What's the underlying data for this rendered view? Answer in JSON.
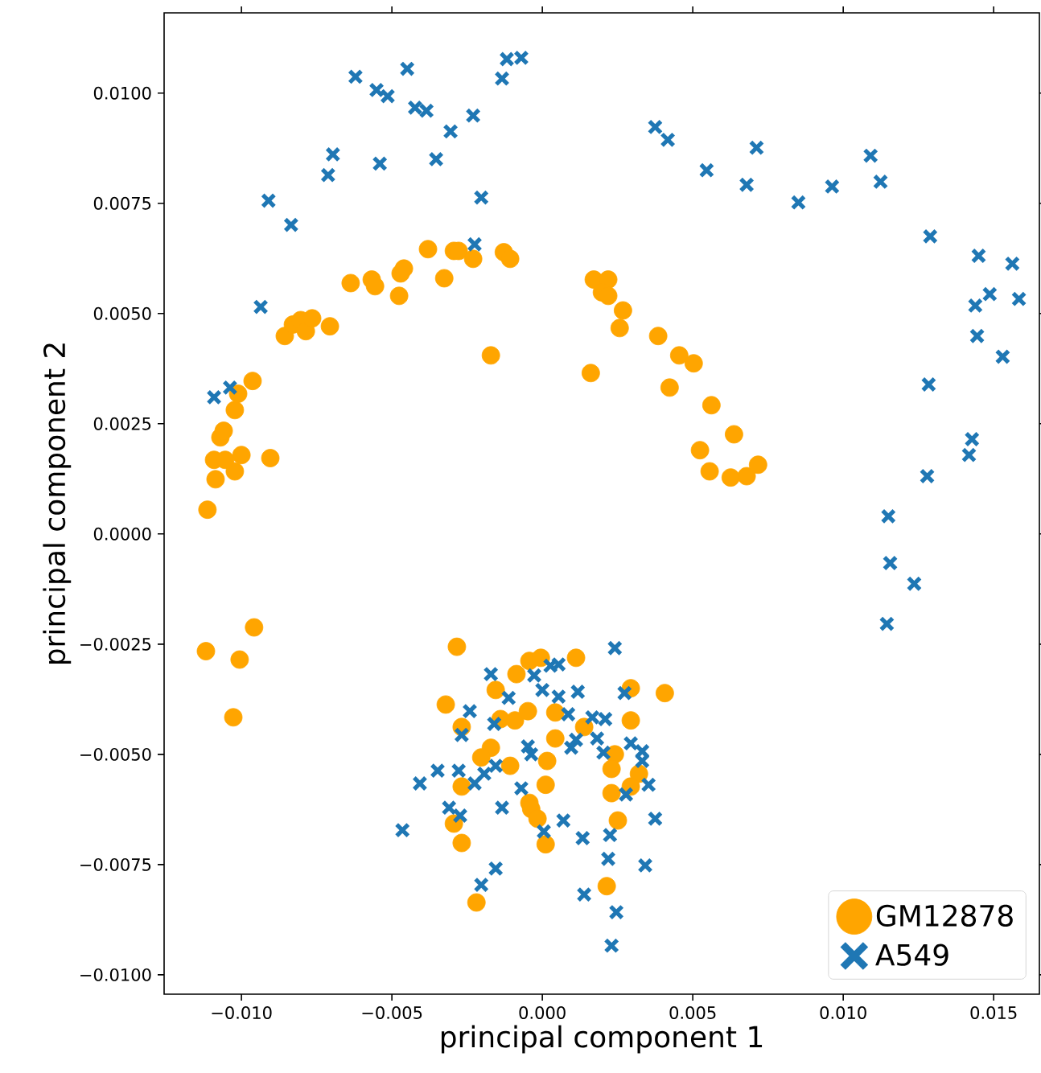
{
  "chart_data": {
    "type": "scatter",
    "xlabel": "principal component 1",
    "ylabel": "principal component 2",
    "xlim": [
      -0.01257,
      0.01652
    ],
    "ylim": [
      -0.01044,
      0.01182
    ],
    "xticks": [
      {
        "value": -0.01,
        "label": "−0.010"
      },
      {
        "value": -0.005,
        "label": "−0.005"
      },
      {
        "value": 0,
        "label": "0.000"
      },
      {
        "value": 0.005,
        "label": "0.005"
      },
      {
        "value": 0.01,
        "label": "0.010"
      },
      {
        "value": 0.015,
        "label": "0.015"
      }
    ],
    "yticks": [
      {
        "value": -0.01,
        "label": "−0.0100"
      },
      {
        "value": -0.0075,
        "label": "−0.0075"
      },
      {
        "value": -0.005,
        "label": "−0.0050"
      },
      {
        "value": -0.0025,
        "label": "−0.0025"
      },
      {
        "value": 0,
        "label": "0.0000"
      },
      {
        "value": 0.0025,
        "label": "0.0025"
      },
      {
        "value": 0.005,
        "label": "0.0050"
      },
      {
        "value": 0.0075,
        "label": "0.0075"
      },
      {
        "value": 0.01,
        "label": "0.0100"
      }
    ],
    "legend": "bottom right",
    "series": [
      {
        "name": "GM12878",
        "color": "#ffa500",
        "marker": "circle",
        "x": [
          -0.01113,
          -0.01086,
          -0.01022,
          -0.01,
          -0.01091,
          -0.01054,
          -0.0107,
          -0.01059,
          -0.00904,
          -0.01022,
          -0.01011,
          -0.00963,
          -0.00856,
          -0.00829,
          -0.00803,
          -0.00786,
          -0.00765,
          -0.00706,
          -0.00637,
          -0.00567,
          -0.00556,
          -0.00476,
          -0.00471,
          -0.0046,
          -0.0038,
          -0.00326,
          -0.00294,
          -0.00278,
          -0.0023,
          -0.00171,
          -0.00128,
          -0.00107,
          0.00171,
          0.00219,
          0.00198,
          0.00219,
          0.00268,
          0.00257,
          0.00161,
          0.00385,
          0.00455,
          0.00503,
          0.00423,
          0.00562,
          0.00637,
          0.00524,
          0.00556,
          0.00626,
          0.00679,
          0.00717,
          -0.00958,
          -0.01118,
          -0.01006,
          -0.01027,
          -0.00284,
          0.00112,
          -0.00043,
          -5e-05,
          -0.00086,
          -0.00155,
          -0.00321,
          -0.00139,
          -0.00091,
          -0.00048,
          0.00043,
          0.00294,
          0.00407,
          -0.00268,
          0.00294,
          0.00139,
          0.00043,
          -0.00171,
          -0.00203,
          -0.00107,
          0.00016,
          0.00241,
          0.0023,
          0.00321,
          -0.00268,
          0.00011,
          0.00294,
          0.0023,
          -0.00043,
          -0.00037,
          -0.00016,
          -0.00294,
          0.00251,
          -0.00268,
          0.00011,
          0.00214,
          -0.00219
        ],
        "values": [
          0.00055,
          0.00124,
          0.00142,
          0.00179,
          0.00168,
          0.00168,
          0.00219,
          0.00234,
          0.00172,
          0.00281,
          0.00318,
          0.00347,
          0.00449,
          0.00475,
          0.00485,
          0.0046,
          0.00489,
          0.00471,
          0.00569,
          0.00577,
          0.00562,
          0.0054,
          0.00591,
          0.00602,
          0.00646,
          0.0058,
          0.00642,
          0.00642,
          0.00624,
          0.00405,
          0.00639,
          0.00624,
          0.00577,
          0.00577,
          0.00548,
          0.0054,
          0.00507,
          0.00467,
          0.00365,
          0.00449,
          0.00405,
          0.00387,
          0.00332,
          0.00292,
          0.00226,
          0.0019,
          0.00142,
          0.00128,
          0.00131,
          0.00157,
          -0.00212,
          -0.00266,
          -0.00285,
          -0.00416,
          -0.00256,
          -0.00281,
          -0.00288,
          -0.00281,
          -0.00318,
          -0.00354,
          -0.00387,
          -0.0042,
          -0.00423,
          -0.00402,
          -0.00405,
          -0.0035,
          -0.00361,
          -0.00438,
          -0.00423,
          -0.00438,
          -0.00464,
          -0.00485,
          -0.00507,
          -0.00526,
          -0.00515,
          -0.005,
          -0.00533,
          -0.00544,
          -0.00573,
          -0.00569,
          -0.00573,
          -0.00588,
          -0.0061,
          -0.00624,
          -0.00646,
          -0.00657,
          -0.0065,
          -0.00701,
          -0.00704,
          -0.00799,
          -0.00836
        ]
      },
      {
        "name": "A549",
        "color": "#1f77b4",
        "marker": "cross",
        "x": [
          -0.00621,
          -0.00551,
          -0.00514,
          -0.00449,
          -0.00423,
          -0.00385,
          -0.00305,
          -0.0023,
          -0.00134,
          -0.00118,
          -0.0007,
          -0.00696,
          -0.00712,
          -0.0054,
          -0.00353,
          -0.0091,
          -0.00835,
          -0.00203,
          -0.00225,
          -0.00936,
          -0.01091,
          -0.01038,
          0.00375,
          0.00417,
          0.00712,
          0.00546,
          0.00679,
          0.00851,
          0.00963,
          0.01091,
          0.01124,
          0.01289,
          0.0145,
          0.01562,
          0.01487,
          0.01439,
          0.01584,
          0.01445,
          0.0153,
          0.01284,
          0.01428,
          0.01418,
          0.01279,
          0.0115,
          0.01156,
          0.01236,
          0.01145,
          0.00241,
          -0.00171,
          0.00027,
          0.00054,
          -0.00027,
          -0.00112,
          0,
          0.00054,
          0.00118,
          0.00273,
          -0.00241,
          -0.0016,
          0.00086,
          0.00166,
          0.00209,
          -0.00268,
          -0.00048,
          -0.00037,
          0.00096,
          0.00112,
          0.00182,
          0.00203,
          0.00294,
          0.00332,
          0.00332,
          -0.00348,
          -0.00407,
          -0.00278,
          -0.00225,
          -0.00193,
          -0.00155,
          -0.0007,
          0.00353,
          0.00278,
          -0.0031,
          -0.00273,
          -0.00134,
          0.0007,
          0.00375,
          -0.00465,
          5e-05,
          0.00134,
          0.00225,
          0.00219,
          0.00342,
          -0.00155,
          -0.00203,
          0.00139,
          0.00246,
          0.0023
        ],
        "values": [
          0.01037,
          0.01007,
          0.00993,
          0.01055,
          0.00967,
          0.0096,
          0.00913,
          0.00949,
          0.01033,
          0.01077,
          0.0108,
          0.00861,
          0.00814,
          0.0084,
          0.0085,
          0.00756,
          0.00701,
          0.00763,
          0.00657,
          0.00515,
          0.0031,
          0.00332,
          0.00923,
          0.00894,
          0.00876,
          0.00825,
          0.00792,
          0.00752,
          0.00788,
          0.00858,
          0.00799,
          0.00675,
          0.00631,
          0.00613,
          0.00544,
          0.00518,
          0.00533,
          0.00449,
          0.00402,
          0.00339,
          0.00215,
          0.00179,
          0.00131,
          0.0004,
          -0.00066,
          -0.00113,
          -0.00204,
          -0.00259,
          -0.00318,
          -0.00299,
          -0.00296,
          -0.00321,
          -0.00372,
          -0.00354,
          -0.00369,
          -0.00358,
          -0.00361,
          -0.00402,
          -0.00431,
          -0.00409,
          -0.00416,
          -0.0042,
          -0.00456,
          -0.00482,
          -0.005,
          -0.00485,
          -0.00467,
          -0.00464,
          -0.00496,
          -0.00475,
          -0.00493,
          -0.00515,
          -0.00537,
          -0.00566,
          -0.00537,
          -0.00566,
          -0.00544,
          -0.00526,
          -0.00577,
          -0.00569,
          -0.00591,
          -0.00621,
          -0.00639,
          -0.00621,
          -0.0065,
          -0.00646,
          -0.00672,
          -0.00675,
          -0.0069,
          -0.00683,
          -0.00737,
          -0.00752,
          -0.00759,
          -0.00796,
          -0.00818,
          -0.00858,
          -0.00934
        ]
      }
    ]
  }
}
